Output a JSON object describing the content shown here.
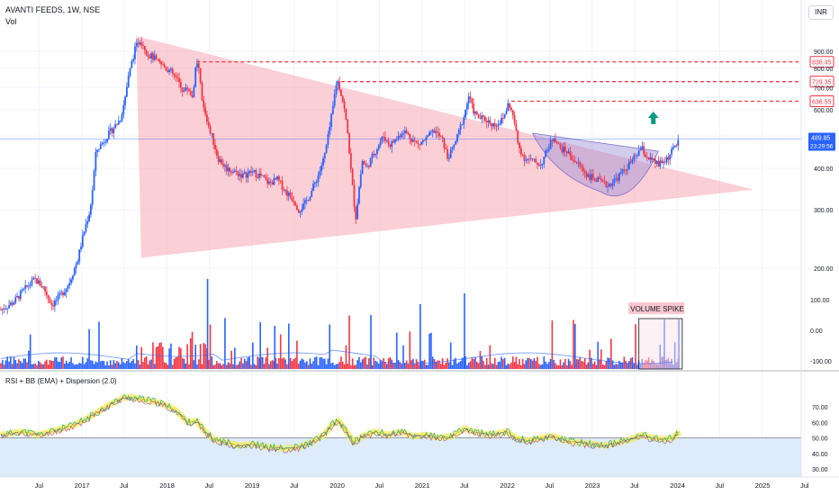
{
  "header": {
    "title": "AVANTI FEEDS, 1W, NSE",
    "vol_label": "Vol",
    "currency_button": "INR",
    "rsi_label": "RSI + BB (EMA) + Dispersion (2.0)"
  },
  "chart_data": {
    "type": "candlestick",
    "symbol": "AVANTI FEEDS",
    "timeframe": "1W",
    "exchange": "NSE",
    "currency": "INR",
    "last_price": "489.85",
    "countdown": "23:29:56",
    "price_axis": {
      "ticks": [
        200,
        300,
        400,
        500,
        600,
        700,
        800,
        900
      ],
      "tick_labels": [
        "200.00",
        "300.00",
        "400.00",
        "500.00",
        "600.00",
        "700.00",
        "800.00",
        "900.00"
      ],
      "scale": "log"
    },
    "x_axis": {
      "tick_labels": [
        "Jul",
        "2017",
        "Jul",
        "2018",
        "Jul",
        "2019",
        "Jul",
        "2020",
        "Jul",
        "2021",
        "Jul",
        "2022",
        "Jul",
        "2023",
        "Jul",
        "2024",
        "Jul",
        "2025",
        "Jul"
      ],
      "tick_dates": [
        2016.5,
        2017.0,
        2017.5,
        2018.0,
        2018.5,
        2019.0,
        2019.5,
        2020.0,
        2020.5,
        2021.0,
        2021.5,
        2022.0,
        2022.5,
        2023.0,
        2023.5,
        2024.0,
        2024.5,
        2025.0,
        2025.5
      ]
    },
    "resistance_levels": [
      {
        "value": 836.45,
        "label": "836.45"
      },
      {
        "value": 729.35,
        "label": "729.35"
      },
      {
        "value": 636.55,
        "label": "636.55"
      }
    ],
    "price_path": [
      [
        2016.05,
        150
      ],
      [
        2016.2,
        158
      ],
      [
        2016.35,
        175
      ],
      [
        2016.45,
        185
      ],
      [
        2016.55,
        175
      ],
      [
        2016.65,
        155
      ],
      [
        2016.75,
        165
      ],
      [
        2016.85,
        180
      ],
      [
        2016.95,
        210
      ],
      [
        2017.05,
        270
      ],
      [
        2017.1,
        300
      ],
      [
        2017.13,
        350
      ],
      [
        2017.17,
        450
      ],
      [
        2017.25,
        480
      ],
      [
        2017.35,
        520
      ],
      [
        2017.45,
        560
      ],
      [
        2017.5,
        630
      ],
      [
        2017.55,
        750
      ],
      [
        2017.62,
        900
      ],
      [
        2017.68,
        980
      ],
      [
        2017.72,
        950
      ],
      [
        2017.78,
        880
      ],
      [
        2017.85,
        860
      ],
      [
        2017.9,
        830
      ],
      [
        2018.0,
        800
      ],
      [
        2018.05,
        780
      ],
      [
        2018.1,
        750
      ],
      [
        2018.15,
        720
      ],
      [
        2018.2,
        680
      ],
      [
        2018.25,
        700
      ],
      [
        2018.3,
        650
      ],
      [
        2018.35,
        830
      ],
      [
        2018.38,
        780
      ],
      [
        2018.42,
        620
      ],
      [
        2018.48,
        550
      ],
      [
        2018.55,
        480
      ],
      [
        2018.6,
        430
      ],
      [
        2018.7,
        400
      ],
      [
        2018.8,
        390
      ],
      [
        2018.9,
        380
      ],
      [
        2019.0,
        390
      ],
      [
        2019.1,
        380
      ],
      [
        2019.2,
        360
      ],
      [
        2019.3,
        370
      ],
      [
        2019.4,
        340
      ],
      [
        2019.5,
        320
      ],
      [
        2019.55,
        300
      ],
      [
        2019.62,
        310
      ],
      [
        2019.7,
        340
      ],
      [
        2019.78,
        380
      ],
      [
        2019.85,
        430
      ],
      [
        2019.9,
        500
      ],
      [
        2019.95,
        600
      ],
      [
        2020.0,
        740
      ],
      [
        2020.02,
        720
      ],
      [
        2020.08,
        620
      ],
      [
        2020.13,
        500
      ],
      [
        2020.17,
        380
      ],
      [
        2020.22,
        280
      ],
      [
        2020.25,
        330
      ],
      [
        2020.3,
        420
      ],
      [
        2020.35,
        400
      ],
      [
        2020.45,
        450
      ],
      [
        2020.55,
        500
      ],
      [
        2020.62,
        470
      ],
      [
        2020.7,
        490
      ],
      [
        2020.78,
        520
      ],
      [
        2020.85,
        500
      ],
      [
        2020.95,
        470
      ],
      [
        2021.05,
        490
      ],
      [
        2021.15,
        520
      ],
      [
        2021.25,
        480
      ],
      [
        2021.3,
        430
      ],
      [
        2021.35,
        450
      ],
      [
        2021.42,
        500
      ],
      [
        2021.5,
        580
      ],
      [
        2021.55,
        660
      ],
      [
        2021.6,
        600
      ],
      [
        2021.65,
        570
      ],
      [
        2021.75,
        560
      ],
      [
        2021.85,
        540
      ],
      [
        2021.95,
        560
      ],
      [
        2022.02,
        630
      ],
      [
        2022.08,
        560
      ],
      [
        2022.13,
        470
      ],
      [
        2022.2,
        430
      ],
      [
        2022.3,
        420
      ],
      [
        2022.4,
        410
      ],
      [
        2022.5,
        470
      ],
      [
        2022.55,
        500
      ],
      [
        2022.62,
        460
      ],
      [
        2022.7,
        450
      ],
      [
        2022.8,
        420
      ],
      [
        2022.88,
        400
      ],
      [
        2022.95,
        380
      ],
      [
        2023.05,
        370
      ],
      [
        2023.12,
        360
      ],
      [
        2023.18,
        355
      ],
      [
        2023.25,
        365
      ],
      [
        2023.32,
        380
      ],
      [
        2023.4,
        400
      ],
      [
        2023.5,
        430
      ],
      [
        2023.58,
        460
      ],
      [
        2023.62,
        440
      ],
      [
        2023.7,
        420
      ],
      [
        2023.78,
        410
      ],
      [
        2023.85,
        420
      ],
      [
        2023.92,
        440
      ],
      [
        2023.98,
        470
      ],
      [
        2024.03,
        490
      ]
    ],
    "rsi_axis": {
      "ticks": [
        30,
        40,
        50,
        60,
        70
      ],
      "tick_labels": [
        "30.00",
        "40.00",
        "50.00",
        "60.00",
        "70.00"
      ],
      "midline": 50
    },
    "rsi_path": [
      [
        2016.05,
        52
      ],
      [
        2016.3,
        54
      ],
      [
        2016.5,
        52
      ],
      [
        2016.7,
        55
      ],
      [
        2016.9,
        58
      ],
      [
        2017.05,
        62
      ],
      [
        2017.2,
        67
      ],
      [
        2017.35,
        72
      ],
      [
        2017.5,
        76
      ],
      [
        2017.6,
        76
      ],
      [
        2017.7,
        75
      ],
      [
        2017.8,
        74
      ],
      [
        2017.95,
        72
      ],
      [
        2018.1,
        68
      ],
      [
        2018.25,
        60
      ],
      [
        2018.35,
        61
      ],
      [
        2018.45,
        54
      ],
      [
        2018.55,
        49
      ],
      [
        2018.7,
        47
      ],
      [
        2018.85,
        45
      ],
      [
        2019.0,
        46
      ],
      [
        2019.2,
        44
      ],
      [
        2019.4,
        43
      ],
      [
        2019.55,
        44
      ],
      [
        2019.7,
        47
      ],
      [
        2019.85,
        52
      ],
      [
        2019.95,
        59
      ],
      [
        2020.02,
        61
      ],
      [
        2020.1,
        55
      ],
      [
        2020.2,
        47
      ],
      [
        2020.3,
        51
      ],
      [
        2020.45,
        54
      ],
      [
        2020.6,
        52
      ],
      [
        2020.75,
        54
      ],
      [
        2020.9,
        51
      ],
      [
        2021.05,
        52
      ],
      [
        2021.2,
        50
      ],
      [
        2021.35,
        51
      ],
      [
        2021.5,
        56
      ],
      [
        2021.6,
        54
      ],
      [
        2021.8,
        52
      ],
      [
        2022.0,
        54
      ],
      [
        2022.1,
        50
      ],
      [
        2022.25,
        48
      ],
      [
        2022.4,
        50
      ],
      [
        2022.55,
        51
      ],
      [
        2022.7,
        48
      ],
      [
        2022.85,
        47
      ],
      [
        2023.0,
        46
      ],
      [
        2023.15,
        45
      ],
      [
        2023.3,
        47
      ],
      [
        2023.45,
        49
      ],
      [
        2023.6,
        52
      ],
      [
        2023.7,
        50
      ],
      [
        2023.85,
        49
      ],
      [
        2023.95,
        50
      ],
      [
        2024.03,
        54
      ]
    ],
    "volume_axis": {
      "ticks": [
        100,
        0,
        -100
      ],
      "tick_labels": [
        "100.00",
        "0.00",
        "-100.00"
      ]
    },
    "annotations": [
      {
        "text": "VOLUME SPIKE",
        "type": "label"
      }
    ]
  },
  "colors": {
    "up": "#2962ff",
    "down": "#f23645",
    "triangle_fill": "#f7a8b4",
    "cup_fill": "#9c8fd6",
    "resistance": "#f23645",
    "rsi_band": "#ddebfb",
    "rsi_highlight": "#f5ee57",
    "arrow": "#089981",
    "axis_text": "#131722",
    "grid": "#f0f3fa"
  }
}
